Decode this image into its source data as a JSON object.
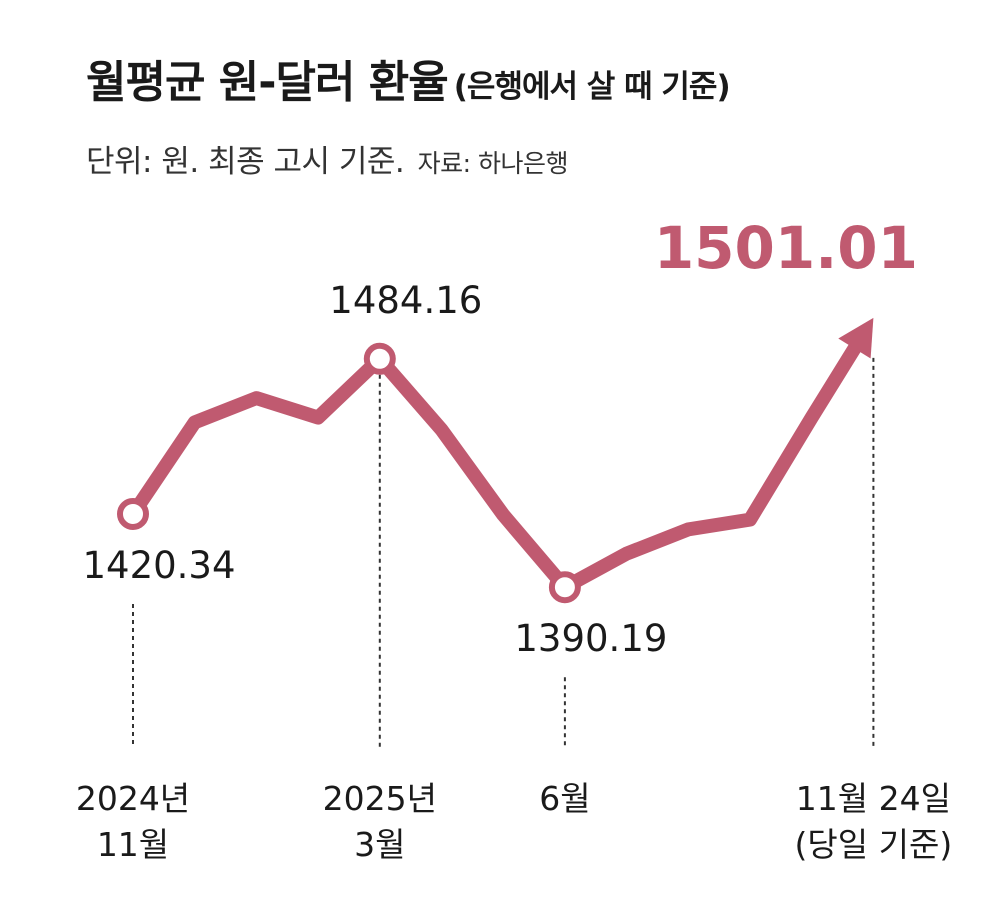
{
  "title": "월평균 원-달러 환율",
  "title_note": "(은행에서 살 때 기준)",
  "subtitle": "단위: 원. 최종 고시 기준.",
  "source": "자료: 하나은행",
  "colors": {
    "line": "#c05a70",
    "text": "#1a1a1a",
    "guide": "#333333"
  },
  "chart_data": {
    "type": "line",
    "title": "월평균 원-달러 환율",
    "ylim": [
      1380,
      1510
    ],
    "series": [
      {
        "values": [
          1420.34,
          1458,
          1468,
          1460,
          1484.16,
          1455,
          1420,
          1390.19,
          1404,
          1414,
          1418,
          1460,
          1501.01
        ]
      }
    ],
    "x_labels": [
      {
        "index": 0,
        "lines": [
          "2024년",
          "11월"
        ]
      },
      {
        "index": 4,
        "lines": [
          "2025년",
          "3월"
        ]
      },
      {
        "index": 7,
        "lines": [
          "6월"
        ]
      },
      {
        "index": 12,
        "lines": [
          "11월 24일",
          "(당일 기준)"
        ]
      }
    ],
    "annotations": [
      {
        "index": 0,
        "text": "1420.34",
        "position": "below"
      },
      {
        "index": 4,
        "text": "1484.16",
        "position": "above"
      },
      {
        "index": 7,
        "text": "1390.19",
        "position": "below"
      },
      {
        "index": 12,
        "text": "1501.01",
        "position": "above",
        "highlight": true
      }
    ],
    "grid": false,
    "legend": "none"
  }
}
